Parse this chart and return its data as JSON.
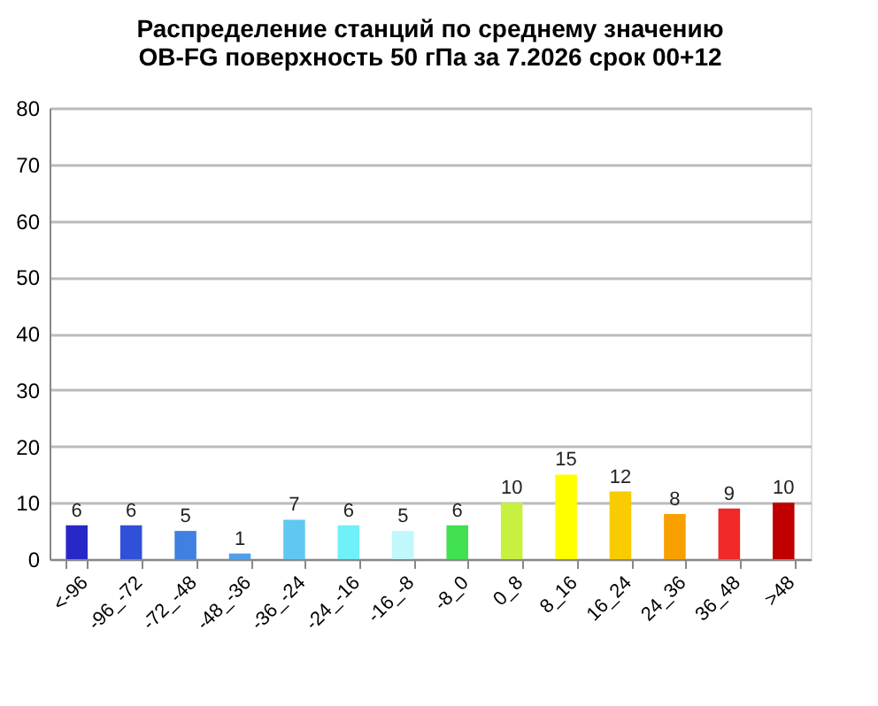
{
  "chart_data": {
    "type": "bar",
    "title": [
      "Распределение станций по среднему значению",
      "OB-FG поверхность  50 гПа за 7.2026 срок 00+12"
    ],
    "categories": [
      "<-96",
      "-96_-72",
      "-72_-48",
      "-48_-36",
      "-36_-24",
      "-24_-16",
      "-16_-8",
      "-8_0",
      "0_8",
      "8_16",
      "16_24",
      "24_36",
      "36_48",
      ">48"
    ],
    "values": [
      6,
      6,
      5,
      1,
      7,
      6,
      5,
      6,
      10,
      15,
      12,
      8,
      9,
      10
    ],
    "colors": [
      "#2828c8",
      "#3050d8",
      "#4080e0",
      "#50a0e8",
      "#60c8f0",
      "#70f0f8",
      "#c0f8fc",
      "#40e050",
      "#c8f040",
      "#ffff00",
      "#f8cc00",
      "#f8a000",
      "#f02828",
      "#c00000"
    ],
    "ylim": [
      0,
      80
    ],
    "yticks": [
      0,
      10,
      20,
      30,
      40,
      50,
      60,
      70,
      80
    ],
    "grid": "y",
    "data_labels": true
  }
}
